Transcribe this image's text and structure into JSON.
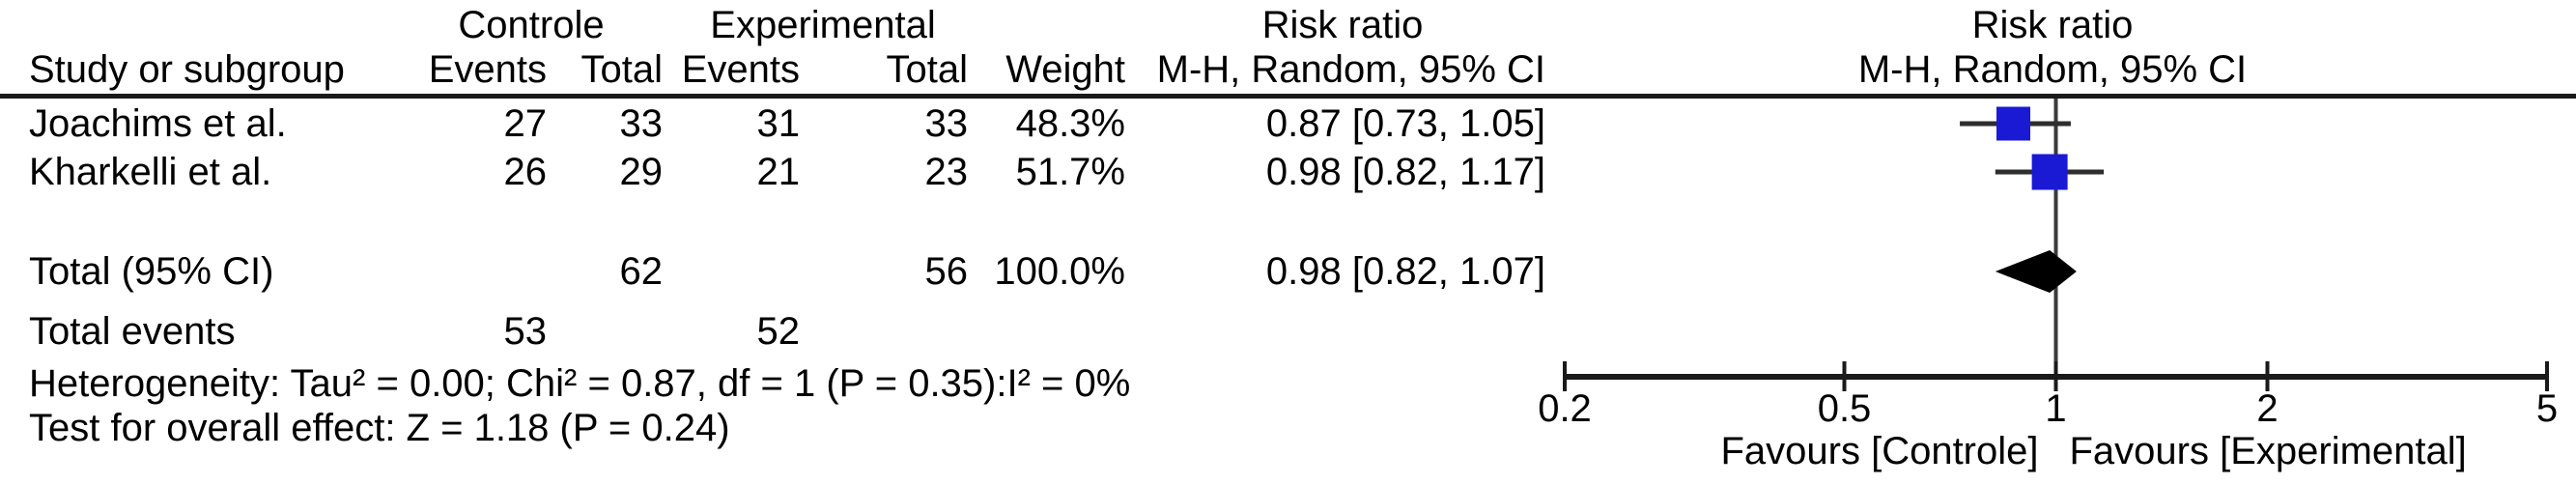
{
  "table": {
    "group_headers": {
      "controle": "Controle",
      "experimental": "Experimental",
      "risk_ratio_text": "Risk ratio",
      "risk_ratio_plot": "Risk ratio"
    },
    "col_headers": {
      "study": "Study or subgroup",
      "ctrl_events": "Events",
      "ctrl_total": "Total",
      "exp_events": "Events",
      "exp_total": "Total",
      "weight": "Weight",
      "mh_ci_text": "M-H, Random, 95% CI",
      "mh_ci_plot": "M-H, Random, 95% CI"
    },
    "rows": [
      {
        "study": "Joachims et al.",
        "ctrl_events": "27",
        "ctrl_total": "33",
        "exp_events": "31",
        "exp_total": "33",
        "weight": "48.3%",
        "ci_label": "0.87 [0.73, 1.05]"
      },
      {
        "study": "Kharkelli et al.",
        "ctrl_events": "26",
        "ctrl_total": "29",
        "exp_events": "21",
        "exp_total": "23",
        "weight": "51.7%",
        "ci_label": "0.98 [0.82, 1.17]"
      }
    ],
    "total_row": {
      "label": "Total (95% CI)",
      "ctrl_total": "62",
      "exp_total": "56",
      "weight": "100.0%",
      "ci_label": "0.98 [0.82, 1.07]"
    },
    "total_events": {
      "label": "Total events",
      "ctrl_events": "53",
      "exp_events": "52"
    },
    "heterogeneity": "Heterogeneity: Tau² = 0.00; Chi² = 0.87, df = 1 (P = 0.35):I² = 0%",
    "overall_effect": "Test for overall effect: Z = 1.18 (P = 0.24)"
  },
  "chart_data": {
    "type": "forest",
    "title": "Risk ratio",
    "effect_measure": "M-H, Random, 95% CI",
    "x_scale": "log",
    "axis": {
      "range": [
        0.2,
        5
      ],
      "ticks": [
        "0.2",
        "0.5",
        "1",
        "2",
        "5"
      ],
      "tick_values": [
        0.2,
        0.5,
        1,
        2,
        5
      ],
      "favours_left": "Favours [Controle]",
      "favours_right": "Favours [Experimental]"
    },
    "studies": [
      {
        "name": "Joachims et al.",
        "rr": 0.87,
        "ci": [
          0.73,
          1.05
        ],
        "weight": 48.3
      },
      {
        "name": "Kharkelli et al.",
        "rr": 0.98,
        "ci": [
          0.82,
          1.17
        ],
        "weight": 51.7
      }
    ],
    "total": {
      "name": "Total (95% CI)",
      "rr": 0.98,
      "ci": [
        0.82,
        1.07
      ],
      "weight": 100.0
    },
    "heterogeneity": {
      "tau2": 0.0,
      "chi2": 0.87,
      "df": 1,
      "p": 0.35,
      "i2_pct": 0
    },
    "overall_effect": {
      "z": 1.18,
      "p": 0.24
    },
    "colors": {
      "square": "#1a1ad4",
      "diamond": "#000000",
      "line": "#1a1a1a",
      "whisker": "#2e2e2e"
    }
  }
}
